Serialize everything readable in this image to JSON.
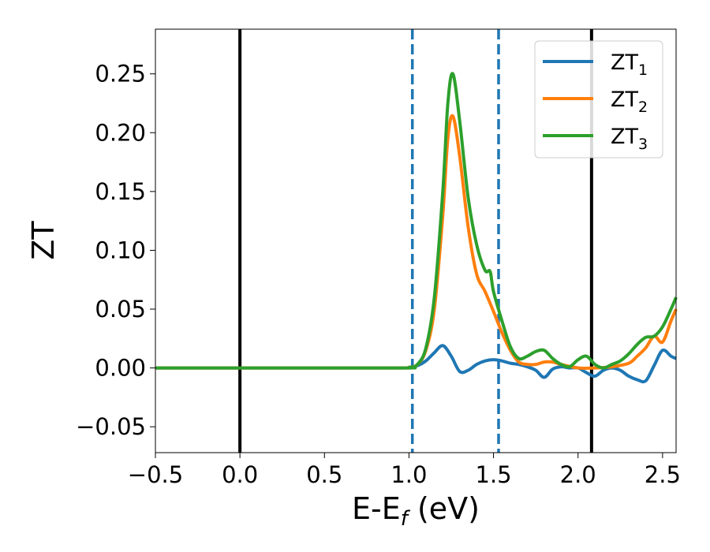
{
  "chart_data": {
    "type": "line",
    "title": "",
    "xlabel": "E-E",
    "xlabel_subscript": "f",
    "xlabel_suffix": " (eV)",
    "ylabel": "ZT",
    "xlim": [
      -0.5,
      2.58
    ],
    "ylim": [
      -0.072,
      0.288
    ],
    "x_ticks": [
      -0.5,
      0.0,
      0.5,
      1.0,
      1.5,
      2.0,
      2.5
    ],
    "x_tick_labels": [
      "−0.5",
      "0.0",
      "0.5",
      "1.0",
      "1.5",
      "2.0",
      "2.5"
    ],
    "y_ticks": [
      -0.05,
      0.0,
      0.05,
      0.1,
      0.15,
      0.2,
      0.25
    ],
    "y_tick_labels": [
      "−0.05",
      "0.00",
      "0.05",
      "0.10",
      "0.15",
      "0.20",
      "0.25"
    ],
    "grid": false,
    "legend_position": "top-right",
    "vlines": [
      {
        "x": 0.0,
        "style": "solid",
        "color": "#000000"
      },
      {
        "x": 2.08,
        "style": "solid",
        "color": "#000000"
      },
      {
        "x": 1.02,
        "style": "dashed",
        "color": "#1f77b4"
      },
      {
        "x": 1.53,
        "style": "dashed",
        "color": "#1f77b4"
      }
    ],
    "series": [
      {
        "name": "ZT",
        "subscript": "1",
        "color": "#1f77b4",
        "x": [
          -0.5,
          0.9,
          1.0,
          1.05,
          1.1,
          1.15,
          1.2,
          1.25,
          1.3,
          1.35,
          1.4,
          1.45,
          1.5,
          1.55,
          1.6,
          1.65,
          1.7,
          1.75,
          1.8,
          1.85,
          1.9,
          1.95,
          2.0,
          2.05,
          2.1,
          2.15,
          2.2,
          2.25,
          2.3,
          2.35,
          2.4,
          2.45,
          2.5,
          2.55,
          2.58
        ],
        "y": [
          0,
          0,
          0.0005,
          0.002,
          0.006,
          0.013,
          0.019,
          0.01,
          -0.003,
          -0.002,
          0.003,
          0.006,
          0.007,
          0.006,
          0.004,
          0.003,
          0.001,
          -0.002,
          -0.008,
          -0.001,
          0.001,
          0.0,
          0.0,
          -0.004,
          -0.007,
          -0.002,
          0.0,
          -0.002,
          -0.007,
          -0.01,
          -0.011,
          0.002,
          0.015,
          0.01,
          0.008
        ]
      },
      {
        "name": "ZT",
        "subscript": "2",
        "color": "#ff7f0e",
        "x": [
          -0.5,
          0.9,
          1.0,
          1.05,
          1.1,
          1.15,
          1.2,
          1.23,
          1.26,
          1.3,
          1.35,
          1.4,
          1.45,
          1.5,
          1.55,
          1.6,
          1.65,
          1.7,
          1.75,
          1.8,
          1.85,
          1.9,
          2.0,
          2.1,
          2.2,
          2.3,
          2.35,
          2.4,
          2.45,
          2.5,
          2.55,
          2.58
        ],
        "y": [
          0,
          0,
          0.0005,
          0.003,
          0.015,
          0.05,
          0.13,
          0.195,
          0.214,
          0.18,
          0.12,
          0.08,
          0.065,
          0.048,
          0.03,
          0.015,
          0.005,
          0.003,
          0.003,
          0.005,
          0.005,
          0.003,
          0.0,
          0.0,
          0.001,
          0.004,
          0.01,
          0.017,
          0.027,
          0.022,
          0.04,
          0.05
        ]
      },
      {
        "name": "ZT",
        "subscript": "3",
        "color": "#2ca02c",
        "x": [
          -0.5,
          0.9,
          1.0,
          1.05,
          1.1,
          1.15,
          1.2,
          1.23,
          1.26,
          1.3,
          1.35,
          1.4,
          1.45,
          1.48,
          1.5,
          1.55,
          1.6,
          1.65,
          1.7,
          1.75,
          1.8,
          1.85,
          1.9,
          1.95,
          2.0,
          2.05,
          2.1,
          2.15,
          2.2,
          2.25,
          2.3,
          2.35,
          2.4,
          2.45,
          2.5,
          2.55,
          2.58
        ],
        "y": [
          0,
          0,
          0.0005,
          0.003,
          0.017,
          0.06,
          0.15,
          0.225,
          0.25,
          0.21,
          0.145,
          0.105,
          0.083,
          0.082,
          0.065,
          0.04,
          0.018,
          0.008,
          0.01,
          0.014,
          0.015,
          0.008,
          0.003,
          0.001,
          0.007,
          0.01,
          0.003,
          0.0,
          0.003,
          0.006,
          0.012,
          0.02,
          0.026,
          0.027,
          0.035,
          0.05,
          0.06
        ]
      }
    ]
  }
}
